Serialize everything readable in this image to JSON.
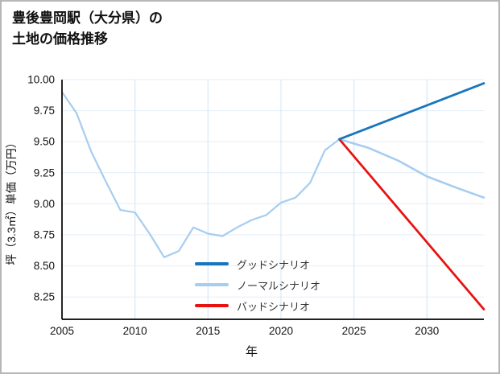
{
  "chart_data": {
    "type": "line",
    "title_lines": [
      "豊後豊岡駅（大分県）の",
      "土地の価格推移"
    ],
    "xlabel": "年",
    "ylabel": "坪（3.3㎡）単価（万円）",
    "x_ticks": [
      2005,
      2010,
      2015,
      2020,
      2025,
      2030
    ],
    "y_ticks": [
      8.25,
      8.5,
      8.75,
      9.0,
      9.25,
      9.5,
      9.75,
      10.0
    ],
    "xlim": [
      2005,
      2033.9
    ],
    "ylim": [
      8.07,
      10.0
    ],
    "grid": true,
    "legend_position": "lower-center-inside",
    "colors": {
      "good": "#1976bd",
      "normal": "#a6cdf0",
      "bad": "#e81212",
      "grid_vertical": "#d9e7f5",
      "grid_horizontal": "#e3eef9",
      "axis": "#000000"
    },
    "series": [
      {
        "id": "history-price",
        "label": "",
        "in_legend": false,
        "color": "#a6cdf0",
        "width": 2.2,
        "x": [
          2005,
          2006,
          2007,
          2008,
          2009,
          2010,
          2011,
          2012,
          2013,
          2014,
          2015,
          2016,
          2017,
          2018,
          2019,
          2020,
          2021,
          2022,
          2023,
          2024
        ],
        "y": [
          9.9,
          9.73,
          9.42,
          9.18,
          8.95,
          8.93,
          8.76,
          8.57,
          8.62,
          8.81,
          8.76,
          8.74,
          8.81,
          8.87,
          8.91,
          9.01,
          9.05,
          9.17,
          9.43,
          9.52
        ]
      },
      {
        "id": "good-scenario",
        "label": "グッドシナリオ",
        "in_legend": true,
        "color": "#1976bd",
        "width": 2.8,
        "x": [
          2024,
          2033.9
        ],
        "y": [
          9.52,
          9.97
        ]
      },
      {
        "id": "normal-scenario",
        "label": "ノーマルシナリオ",
        "in_legend": true,
        "color": "#a6cdf0",
        "width": 2.6,
        "x": [
          2024,
          2026,
          2028,
          2030,
          2032,
          2033.9
        ],
        "y": [
          9.52,
          9.45,
          9.35,
          9.22,
          9.13,
          9.05
        ]
      },
      {
        "id": "bad-scenario",
        "label": "バッドシナリオ",
        "in_legend": true,
        "color": "#e81212",
        "width": 2.8,
        "x": [
          2024,
          2033.9
        ],
        "y": [
          9.52,
          8.15
        ]
      }
    ]
  }
}
